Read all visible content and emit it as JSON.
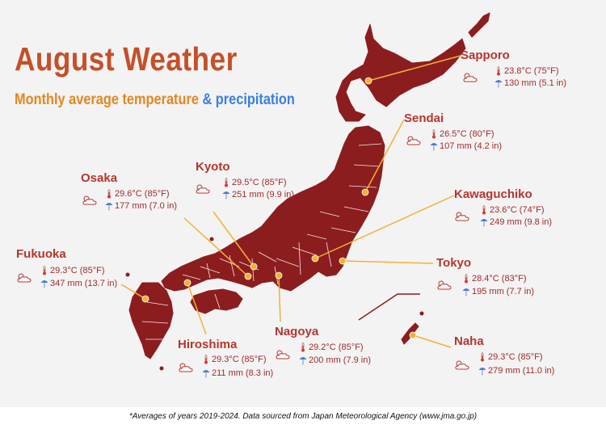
{
  "title": "August Weather",
  "subtitle": {
    "part1": "Monthly average temperature",
    "part2": "& precipitation"
  },
  "colors": {
    "land": "#8c1d1f",
    "title": "#c4502a",
    "subtitle_orange": "#e3871f",
    "subtitle_blue": "#3a7fe0",
    "leader": "#f2b233",
    "city_name": "#b3362d",
    "stat_text": "#a12a2a"
  },
  "icons": {
    "weather": "partly-cloudy-icon",
    "temperature": "thermometer-icon",
    "precipitation": "umbrella-rain-icon"
  },
  "cities": [
    {
      "name": "Sapporo",
      "temp": "23.8°C (75°F)",
      "precip": "130 mm (5.1 in)"
    },
    {
      "name": "Sendai",
      "temp": "26.5°C (80°F)",
      "precip": "107 mm (4.2 in)"
    },
    {
      "name": "Kyoto",
      "temp": "29.5°C (85°F)",
      "precip": "251 mm (9.9 in)"
    },
    {
      "name": "Osaka",
      "temp": "29.6°C (85°F)",
      "precip": "177 mm (7.0 in)"
    },
    {
      "name": "Kawaguchiko",
      "temp": "23.6°C (74°F)",
      "precip": "249 mm (9.8 in)"
    },
    {
      "name": "Fukuoka",
      "temp": "29.3°C (85°F)",
      "precip": "347 mm (13.7 in)"
    },
    {
      "name": "Tokyo",
      "temp": "28.4°C (83°F)",
      "precip": "195 mm (7.7 in)"
    },
    {
      "name": "Nagoya",
      "temp": "29.2°C (85°F)",
      "precip": "200 mm (7.9 in)"
    },
    {
      "name": "Hiroshima",
      "temp": "29.3°C (85°F)",
      "precip": "211 mm (8.3 in)"
    },
    {
      "name": "Naha",
      "temp": "29.3°C (85°F)",
      "precip": "279 mm (11.0 in)"
    }
  ],
  "footnote": "*Averages of years 2019-2024. Data sourced from Japan Meteorological Agency (www.jma.go.jp)"
}
